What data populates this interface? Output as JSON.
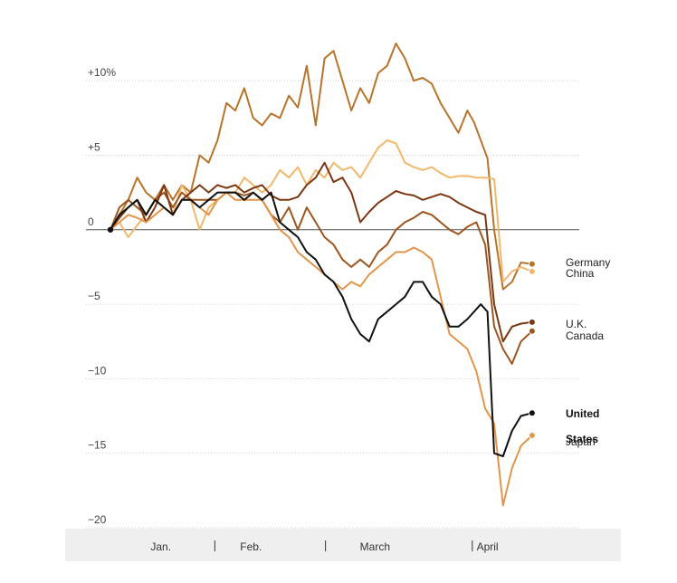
{
  "chart_data": {
    "type": "line",
    "ytick_labels": [
      "+10%",
      "+5",
      "0",
      "−5",
      "−10",
      "−15",
      "−20"
    ],
    "ytick_values": [
      10,
      5,
      0,
      -5,
      -10,
      -15,
      -20
    ],
    "ylim": [
      -20,
      12.5
    ],
    "xlim": [
      0,
      100
    ],
    "x_categories": [
      "Jan.",
      "Feb.",
      "March",
      "April"
    ],
    "x_category_centers": [
      11.3,
      31.5,
      59.3,
      84.5
    ],
    "x_separators": [
      23.4,
      48.2,
      81.1
    ],
    "grid": true,
    "series": [
      {
        "name": "Germany",
        "color": "#b7742a",
        "group": 1,
        "x": [
          0,
          2,
          4,
          6,
          8,
          10,
          12,
          14,
          16,
          18,
          20,
          22,
          24,
          26,
          28,
          30,
          32,
          34,
          36,
          38,
          40,
          42,
          44,
          46,
          48,
          50,
          52,
          54,
          56,
          58,
          60,
          62,
          64,
          66,
          68,
          70,
          72,
          74,
          76,
          78,
          80,
          81.5,
          83,
          84.5,
          86,
          88,
          90,
          92,
          94.5
        ],
        "y": [
          0,
          1,
          2,
          3.5,
          2.5,
          2,
          3,
          2,
          3,
          2.5,
          5,
          4.5,
          6,
          8.5,
          8,
          9.5,
          7.5,
          7,
          7.8,
          7.5,
          9,
          8.2,
          11,
          7,
          11.5,
          12,
          10,
          8,
          9.5,
          8.5,
          10.5,
          11,
          12.5,
          11.5,
          10,
          10.2,
          9.8,
          8.5,
          7.5,
          6.5,
          8,
          7.2,
          6,
          4.8,
          0,
          -4,
          -3.5,
          -2.2,
          -2.3
        ]
      },
      {
        "name": "China",
        "color": "#f1b86b",
        "group": 1,
        "x": [
          0,
          2,
          4,
          6,
          8,
          10,
          12,
          14,
          16,
          18,
          20,
          22,
          24,
          26,
          28,
          30,
          32,
          34,
          36,
          38,
          40,
          42,
          44,
          46,
          48,
          50,
          52,
          54,
          56,
          58,
          60,
          62,
          64,
          66,
          68,
          70,
          72,
          74,
          76,
          78,
          80,
          82,
          84,
          86,
          88,
          90,
          92,
          94.5
        ],
        "y": [
          0,
          0.5,
          -0.5,
          0.3,
          1,
          2,
          1.5,
          1,
          3,
          2,
          0,
          1.5,
          2,
          2.5,
          2.5,
          3.5,
          3,
          2.5,
          3,
          4,
          3.5,
          4.2,
          3,
          4,
          3.5,
          4.5,
          4,
          4.2,
          3.5,
          4.5,
          5.5,
          6,
          5.8,
          4.5,
          4.2,
          4,
          4.2,
          3.8,
          3.5,
          3.6,
          3.6,
          3.5,
          3.5,
          3.4,
          -3.5,
          -2.8,
          -2.5,
          -2.8
        ]
      },
      {
        "name": "U.K.",
        "color": "#7a3711",
        "group": 2,
        "x": [
          0,
          2,
          4,
          6,
          8,
          10,
          12,
          14,
          16,
          18,
          20,
          22,
          24,
          26,
          28,
          30,
          32,
          34,
          36,
          38,
          40,
          42,
          44,
          46,
          48,
          50,
          52,
          54,
          56,
          58,
          60,
          62,
          64,
          66,
          68,
          70,
          72,
          74,
          76,
          78,
          80,
          82,
          84,
          86,
          88,
          90,
          92,
          94.5
        ],
        "y": [
          0,
          0.8,
          1.5,
          2,
          0.5,
          1.5,
          3,
          1,
          2,
          2.5,
          3,
          2.5,
          3,
          2.8,
          3,
          2.5,
          2.8,
          3,
          2.3,
          2,
          2,
          2.2,
          3,
          3.5,
          4.5,
          3.2,
          3.5,
          2.5,
          0.5,
          1.2,
          1.8,
          2.2,
          2.6,
          2.4,
          2.3,
          2,
          2.2,
          2.4,
          2.2,
          1.8,
          1.5,
          1.2,
          1,
          -5,
          -7.5,
          -6.5,
          -6.3,
          -6.2
        ]
      },
      {
        "name": "Canada",
        "color": "#9e5620",
        "group": 2,
        "x": [
          0,
          2,
          4,
          6,
          8,
          10,
          12,
          14,
          16,
          18,
          20,
          22,
          24,
          26,
          28,
          30,
          32,
          34,
          36,
          38,
          40,
          42,
          44,
          46,
          48,
          50,
          52,
          54,
          56,
          58,
          60,
          62,
          64,
          66,
          68,
          70,
          72,
          74,
          76,
          78,
          80,
          82,
          84,
          86,
          88,
          90,
          92,
          94.5
        ],
        "y": [
          0,
          1.5,
          2,
          1.5,
          1,
          2,
          2.5,
          1.5,
          2.5,
          2,
          2,
          2,
          2,
          2.5,
          2.5,
          2.3,
          2.5,
          2,
          1,
          0.5,
          1.5,
          0,
          1.5,
          0.5,
          -0.5,
          -1,
          -2,
          -2.5,
          -2,
          -2.5,
          -1.5,
          -1,
          0,
          0.5,
          0.8,
          1.2,
          1,
          0.5,
          0,
          -0.3,
          0.2,
          0.5,
          -1,
          -6.5,
          -8,
          -9,
          -7.5,
          -6.8
        ]
      },
      {
        "name": "United States",
        "color": "#111111",
        "group": 3,
        "x": [
          0,
          2,
          4,
          6,
          8,
          10,
          12,
          14,
          16,
          18,
          20,
          22,
          24,
          26,
          28,
          30,
          32,
          34,
          36,
          38,
          40,
          42,
          44,
          46,
          48,
          50,
          52,
          54,
          56,
          58,
          60,
          62,
          64,
          66,
          68,
          70,
          72,
          74,
          76,
          78,
          80,
          81.5,
          83,
          84.5,
          86,
          88,
          90,
          92,
          94.5
        ],
        "y": [
          0,
          1,
          1.5,
          2,
          1,
          2,
          1.5,
          1,
          2,
          2,
          1.5,
          2,
          2.5,
          2.5,
          2.5,
          2,
          2.5,
          2,
          2.5,
          0.5,
          0,
          -0.5,
          -1.5,
          -2,
          -3,
          -3.5,
          -4.5,
          -6,
          -7,
          -7.5,
          -6,
          -5.5,
          -5,
          -4.5,
          -3.5,
          -3.5,
          -4.5,
          -5,
          -6.5,
          -6.5,
          -6,
          -5.5,
          -5,
          -5.5,
          -15,
          -15.2,
          -13.5,
          -12.5,
          -12.3
        ]
      },
      {
        "name": "Japan",
        "color": "#e0954a",
        "group": 3,
        "x": [
          0,
          2,
          4,
          6,
          8,
          10,
          12,
          14,
          16,
          18,
          20,
          22,
          24,
          26,
          28,
          30,
          32,
          34,
          36,
          38,
          40,
          42,
          44,
          46,
          48,
          50,
          52,
          54,
          56,
          58,
          60,
          62,
          64,
          66,
          68,
          70,
          72,
          74,
          76,
          78,
          80,
          82,
          84,
          86,
          88,
          90,
          92,
          94.5
        ],
        "y": [
          0,
          0.5,
          1,
          0.8,
          0.5,
          1,
          1.5,
          1,
          2,
          2,
          1.5,
          1,
          2,
          2.5,
          2,
          2,
          2,
          2,
          1,
          0,
          -0.5,
          -1.5,
          -2,
          -2.5,
          -3,
          -3.5,
          -4,
          -3.5,
          -3.8,
          -3,
          -2.5,
          -2,
          -1.5,
          -1.5,
          -1.2,
          -1.5,
          -2,
          -4.5,
          -7,
          -7.5,
          -8,
          -9.5,
          -12,
          -13,
          -18.5,
          -16,
          -14.5,
          -13.8
        ]
      }
    ]
  }
}
